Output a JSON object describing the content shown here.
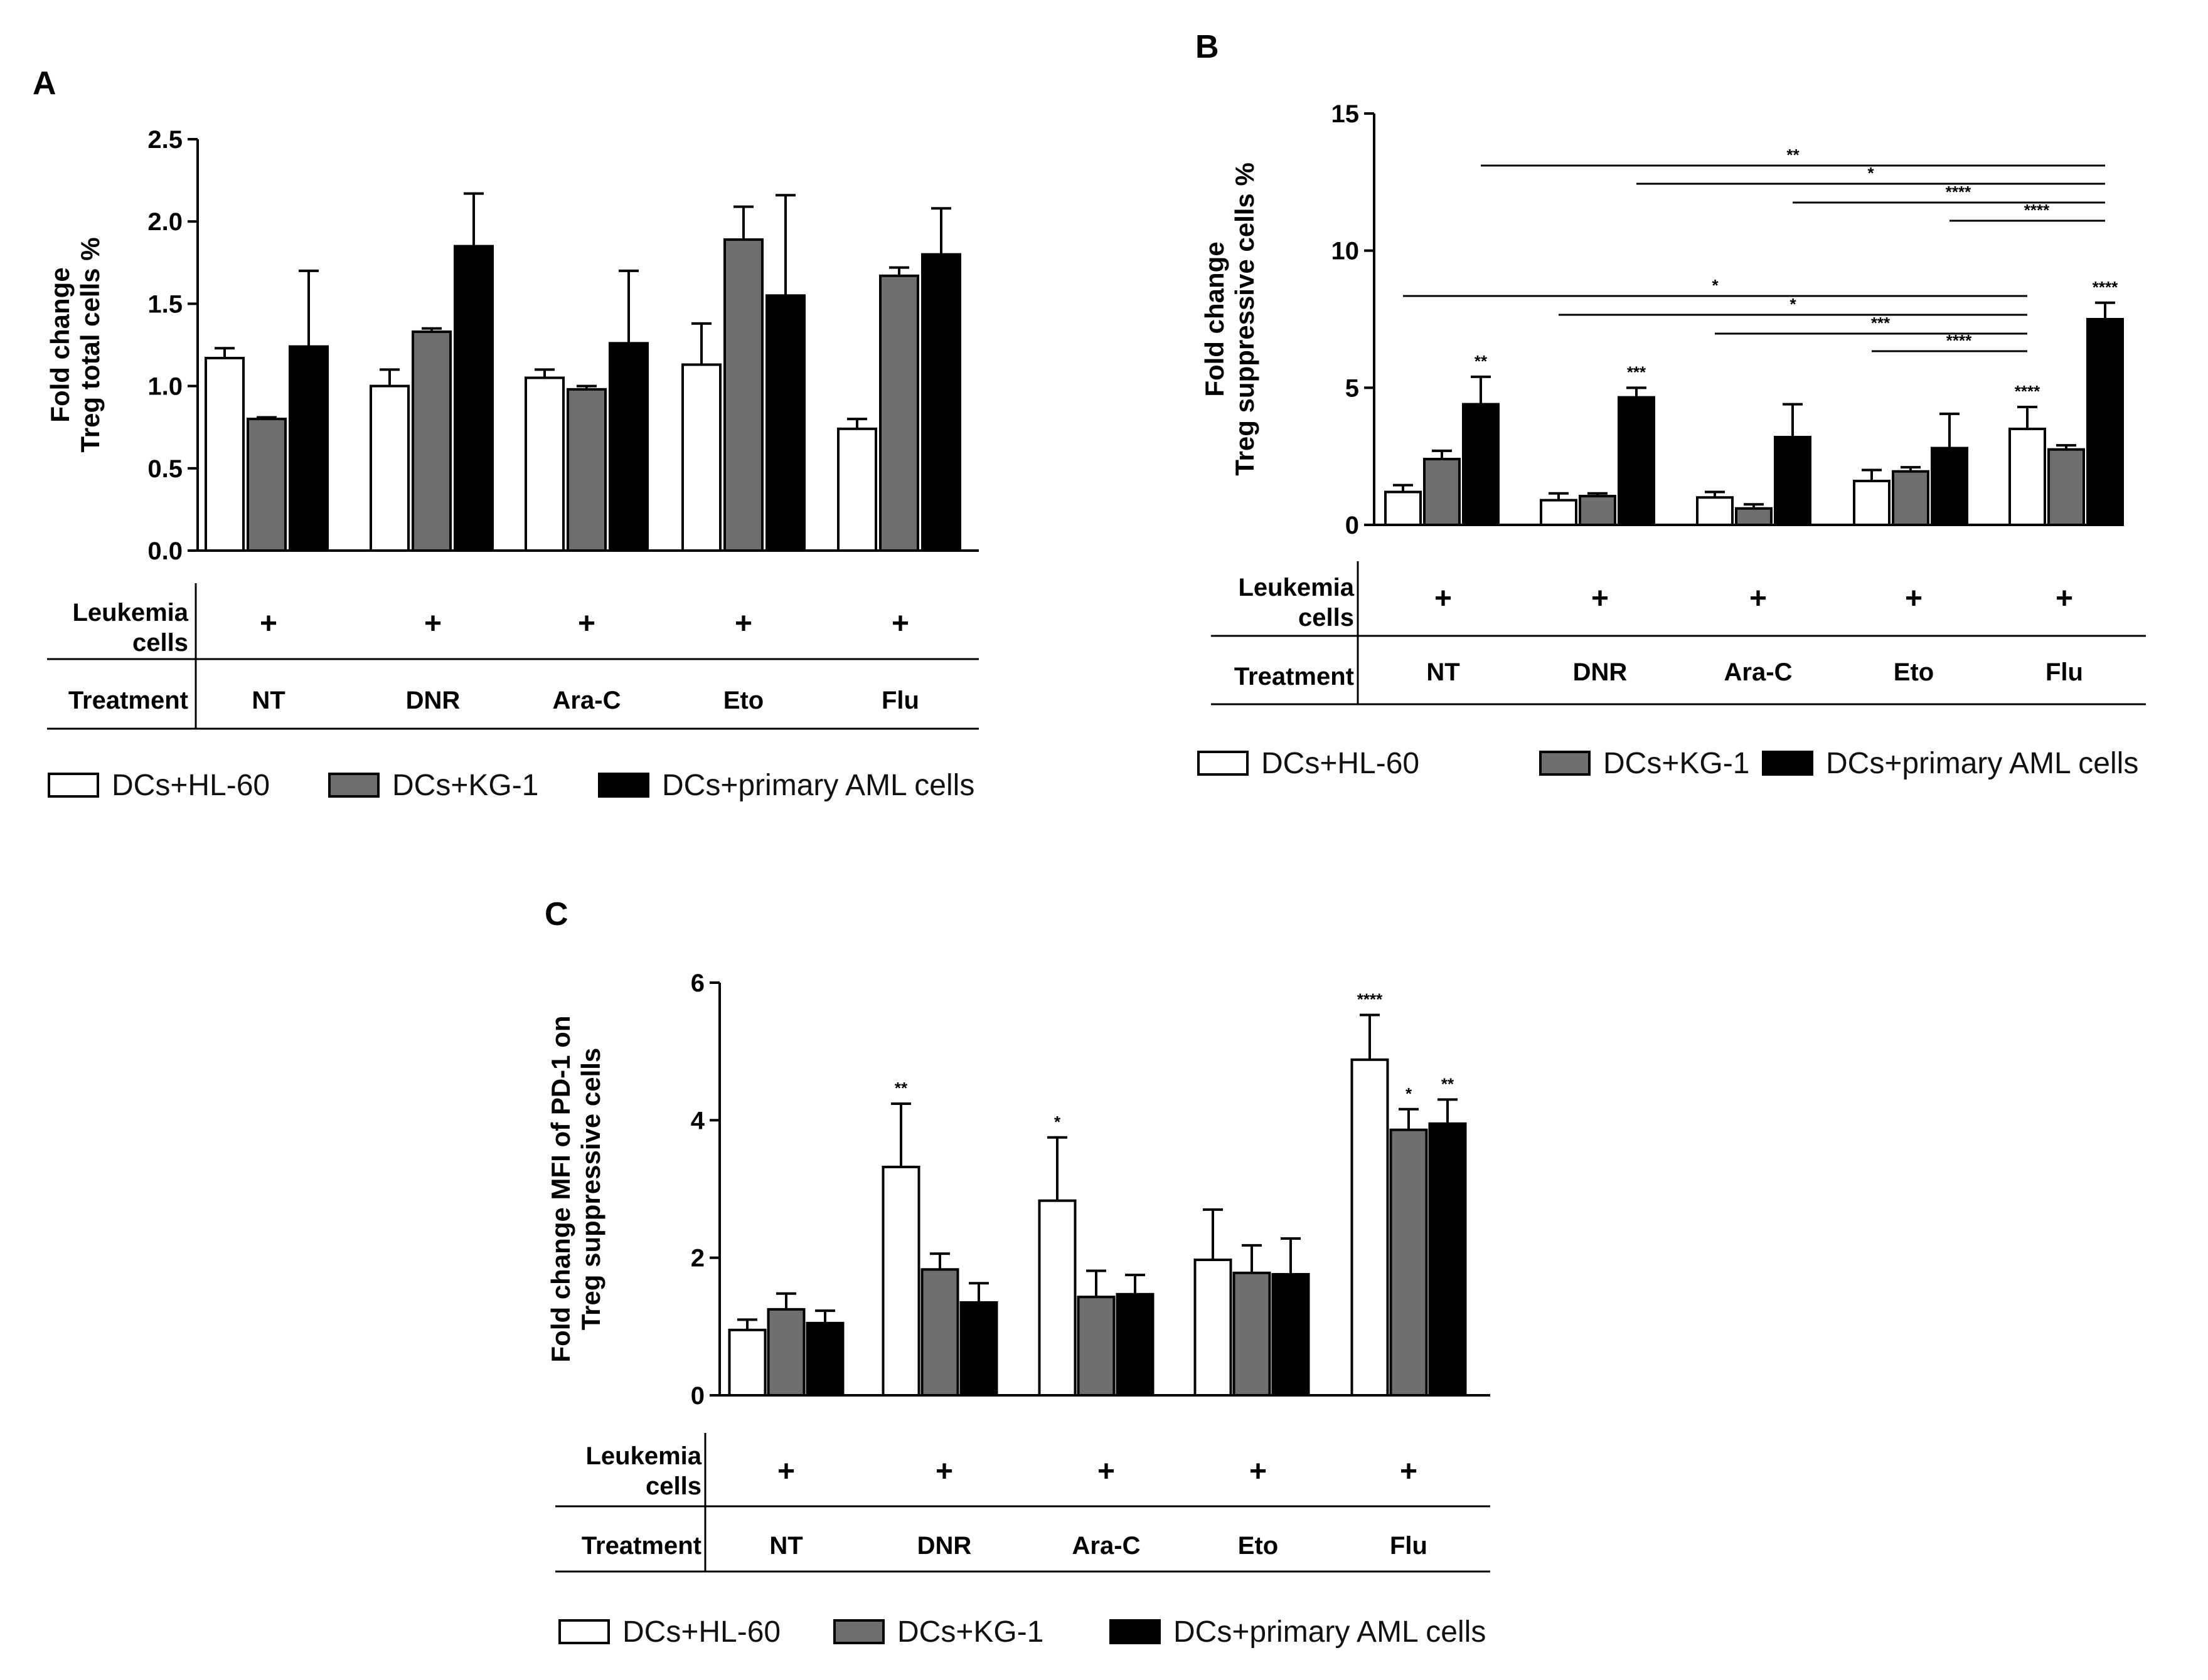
{
  "colors": {
    "hl60": "#ffffff",
    "kg1": "#6e6e6e",
    "primary": "#000000",
    "axis": "#000000"
  },
  "legend": [
    "DCs+HL-60",
    "DCs+KG-1",
    "DCs+primary AML cells"
  ],
  "table": {
    "row1_label_line1": "Leukemia",
    "row1_label_line2": "cells",
    "row2_label": "Treatment",
    "plus": "+"
  },
  "chart_data": [
    {
      "panel": "A",
      "type": "bar",
      "ylabel_line1": "Fold change",
      "ylabel_line2": "Treg total cells %",
      "ylim": [
        0,
        2.5
      ],
      "yticks": [
        "0.0",
        "0.5",
        "1.0",
        "1.5",
        "2.0",
        "2.5"
      ],
      "categories": [
        "NT",
        "DNR",
        "Ara-C",
        "Eto",
        "Flu"
      ],
      "series": [
        {
          "name": "DCs+HL-60",
          "values": [
            1.17,
            1.0,
            1.05,
            1.13,
            0.74
          ],
          "errors": [
            0.06,
            0.1,
            0.05,
            0.25,
            0.06
          ]
        },
        {
          "name": "DCs+KG-1",
          "values": [
            0.8,
            1.33,
            0.98,
            1.89,
            1.67
          ],
          "errors": [
            0.01,
            0.02,
            0.02,
            0.2,
            0.05
          ]
        },
        {
          "name": "DCs+primary AML cells",
          "values": [
            1.24,
            1.85,
            1.26,
            1.55,
            1.8
          ],
          "errors": [
            0.46,
            0.32,
            0.44,
            0.61,
            0.28
          ]
        }
      ],
      "sig_labels": [],
      "brackets": []
    },
    {
      "panel": "B",
      "type": "bar",
      "ylabel_line1": "Fold change",
      "ylabel_line2": "Treg suppressive cells %",
      "ylim": [
        0,
        15
      ],
      "yticks": [
        "0",
        "5",
        "10",
        "15"
      ],
      "categories": [
        "NT",
        "DNR",
        "Ara-C",
        "Eto",
        "Flu"
      ],
      "series": [
        {
          "name": "DCs+HL-60",
          "values": [
            1.2,
            0.9,
            1.0,
            1.6,
            3.5
          ],
          "errors": [
            0.25,
            0.25,
            0.2,
            0.4,
            0.8
          ]
        },
        {
          "name": "DCs+KG-1",
          "values": [
            2.4,
            1.05,
            0.6,
            1.95,
            2.75
          ],
          "errors": [
            0.3,
            0.1,
            0.15,
            0.15,
            0.15
          ]
        },
        {
          "name": "DCs+primary AML cells",
          "values": [
            4.4,
            4.65,
            3.2,
            2.8,
            7.5
          ],
          "errors": [
            1.0,
            0.35,
            1.2,
            1.25,
            0.6
          ]
        }
      ],
      "sig_labels": [
        {
          "category": 0,
          "series": 2,
          "text": "**"
        },
        {
          "category": 1,
          "series": 2,
          "text": "***"
        },
        {
          "category": 4,
          "series": 0,
          "text": "****"
        },
        {
          "category": 4,
          "series": 2,
          "text": "****"
        }
      ],
      "brackets": [
        {
          "from": [
            0,
            2
          ],
          "to": [
            4,
            2
          ],
          "text": "**",
          "level": 1
        },
        {
          "from": [
            1,
            2
          ],
          "to": [
            4,
            2
          ],
          "text": "*",
          "level": 2
        },
        {
          "from": [
            2,
            2
          ],
          "to": [
            4,
            2
          ],
          "text": "****",
          "level": 3
        },
        {
          "from": [
            3,
            2
          ],
          "to": [
            4,
            2
          ],
          "text": "****",
          "level": 4
        },
        {
          "from": [
            0,
            0
          ],
          "to": [
            4,
            0
          ],
          "text": "*",
          "level": 5
        },
        {
          "from": [
            1,
            0
          ],
          "to": [
            4,
            0
          ],
          "text": "*",
          "level": 6
        },
        {
          "from": [
            2,
            0
          ],
          "to": [
            4,
            0
          ],
          "text": "***",
          "level": 7
        },
        {
          "from": [
            3,
            0
          ],
          "to": [
            4,
            0
          ],
          "text": "****",
          "level": 8
        }
      ]
    },
    {
      "panel": "C",
      "type": "bar",
      "ylabel_line1": "Fold change MFI of PD-1 on",
      "ylabel_line2": "Treg suppressive cells",
      "ylim": [
        0,
        6
      ],
      "yticks": [
        "0",
        "2",
        "4",
        "6"
      ],
      "categories": [
        "NT",
        "DNR",
        "Ara-C",
        "Eto",
        "Flu"
      ],
      "series": [
        {
          "name": "DCs+HL-60",
          "values": [
            0.95,
            3.32,
            2.83,
            1.97,
            4.88
          ],
          "errors": [
            0.15,
            0.92,
            0.92,
            0.73,
            0.65
          ]
        },
        {
          "name": "DCs+KG-1",
          "values": [
            1.25,
            1.83,
            1.43,
            1.78,
            3.86
          ],
          "errors": [
            0.23,
            0.23,
            0.38,
            0.4,
            0.3
          ]
        },
        {
          "name": "DCs+primary AML cells",
          "values": [
            1.05,
            1.35,
            1.47,
            1.76,
            3.95
          ],
          "errors": [
            0.18,
            0.28,
            0.28,
            0.52,
            0.35
          ]
        }
      ],
      "sig_labels": [
        {
          "category": 1,
          "series": 0,
          "text": "**"
        },
        {
          "category": 2,
          "series": 0,
          "text": "*"
        },
        {
          "category": 4,
          "series": 0,
          "text": "****"
        },
        {
          "category": 4,
          "series": 1,
          "text": "*"
        },
        {
          "category": 4,
          "series": 2,
          "text": "**"
        }
      ],
      "brackets": []
    }
  ]
}
